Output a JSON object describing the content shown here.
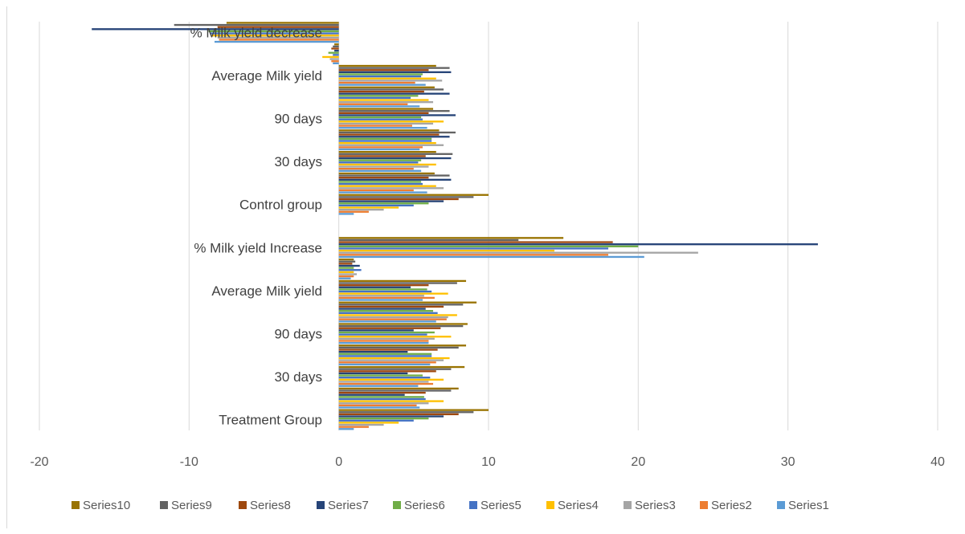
{
  "chart_data": {
    "type": "bar",
    "orientation": "horizontal",
    "xlim": [
      -20,
      40
    ],
    "x_ticks": [
      "-20",
      "-10",
      "0",
      "10",
      "20",
      "30",
      "40"
    ],
    "grid": "vertical",
    "legend_position": "bottom",
    "categories": [
      "Treatment Group",
      "",
      "30 days",
      "",
      "90 days",
      "",
      "Average Milk yield",
      "",
      "% Milk yield Increase",
      "",
      "Control group",
      "",
      "30 days",
      "",
      "90 days",
      "",
      "Average Milk yield",
      "",
      "% Milk yield decrease"
    ],
    "series": [
      {
        "name": "Series1",
        "color": "#5b9bd5",
        "values": [
          1,
          5.4,
          5.3,
          6.1,
          6.0,
          6.5,
          5.6,
          0.8,
          20.4,
          0,
          1,
          5.9,
          5.5,
          5.4,
          5.9,
          5.4,
          5.8,
          -0.4,
          -8.3
        ]
      },
      {
        "name": "Series2",
        "color": "#ed7d31",
        "values": [
          2,
          5.2,
          6.3,
          6.5,
          6.0,
          7.2,
          6.4,
          1.0,
          18.0,
          0,
          2,
          5.0,
          5.0,
          5.6,
          4.9,
          4.6,
          5.1,
          -0.5,
          -8.0
        ]
      },
      {
        "name": "Series3",
        "color": "#a5a5a5",
        "values": [
          3,
          6.0,
          6.0,
          7.0,
          6.4,
          7.3,
          5.7,
          1.2,
          24.0,
          0,
          3,
          7.0,
          6.0,
          7.0,
          6.3,
          6.3,
          6.9,
          -0.6,
          -8.1
        ]
      },
      {
        "name": "Series4",
        "color": "#ffc000",
        "values": [
          4,
          7.0,
          7.0,
          7.4,
          7.5,
          7.9,
          7.3,
          1.0,
          14.4,
          0,
          4,
          6.5,
          6.5,
          6.5,
          7.0,
          6.0,
          6.5,
          -1.1,
          -8.5
        ]
      },
      {
        "name": "Series5",
        "color": "#4472c4",
        "values": [
          5,
          5.8,
          6.1,
          6.2,
          5.9,
          6.6,
          6.2,
          1.5,
          18.0,
          0,
          5,
          5.6,
          5.3,
          6.2,
          5.6,
          4.8,
          5.5,
          -0.4,
          -8.6
        ]
      },
      {
        "name": "Series6",
        "color": "#70ad47",
        "values": [
          6,
          5.7,
          5.6,
          6.2,
          6.4,
          6.3,
          5.9,
          1.0,
          20.0,
          0,
          6,
          5.5,
          5.5,
          6.2,
          5.5,
          5.3,
          5.6,
          -0.7,
          -8.7
        ]
      },
      {
        "name": "Series7",
        "color": "#264478",
        "values": [
          7,
          4.4,
          4.6,
          4.6,
          5.0,
          5.8,
          4.8,
          1.4,
          32.0,
          0,
          7,
          7.5,
          7.5,
          7.4,
          7.8,
          7.4,
          7.5,
          -0.3,
          -16.5
        ]
      },
      {
        "name": "Series8",
        "color": "#9e480e",
        "values": [
          8,
          5.8,
          6.5,
          6.6,
          6.8,
          7.0,
          6.0,
          0.9,
          18.3,
          0,
          8,
          6.0,
          5.8,
          6.7,
          6.0,
          5.7,
          6.0,
          -0.5,
          -8.1
        ]
      },
      {
        "name": "Series9",
        "color": "#636363",
        "values": [
          9,
          7.5,
          7.5,
          8.0,
          8.3,
          8.3,
          7.9,
          1.1,
          12.0,
          0,
          9,
          7.4,
          7.6,
          7.8,
          7.4,
          7.0,
          7.4,
          -0.4,
          -11.0
        ]
      },
      {
        "name": "Series10",
        "color": "#997300",
        "values": [
          10,
          8.0,
          8.4,
          8.5,
          8.6,
          9.2,
          8.5,
          1.0,
          15.0,
          0,
          10,
          6.4,
          6.5,
          6.7,
          6.3,
          6.4,
          6.5,
          -0.3,
          -7.5
        ]
      }
    ]
  }
}
